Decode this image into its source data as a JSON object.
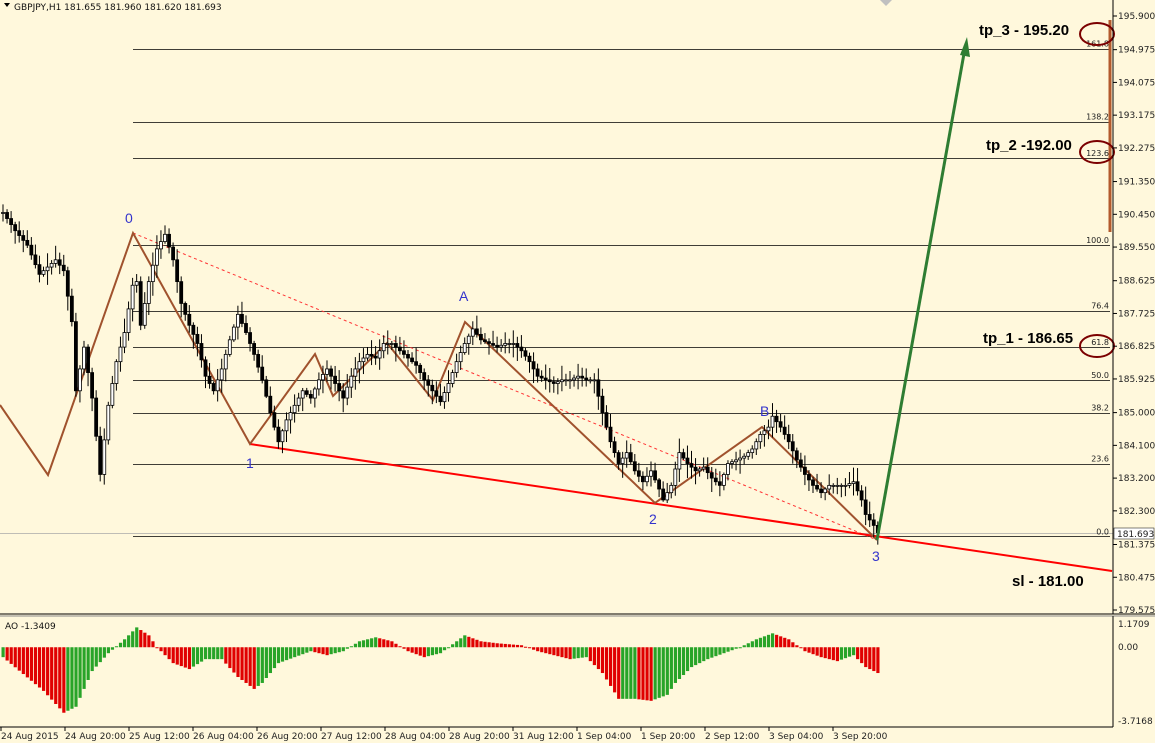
{
  "header": {
    "title": "GBPJPY,H1  181.655 181.960 181.620 181.693",
    "ao_title": "AO -1.3409"
  },
  "chart_data": [
    {
      "type": "candlestick",
      "symbol": "GBPJPY",
      "timeframe": "H1",
      "ylim": [
        179.575,
        195.9
      ],
      "y_ticks": [
        "195.900",
        "194.975",
        "194.075",
        "193.175",
        "192.275",
        "191.350",
        "190.450",
        "189.550",
        "188.625",
        "187.725",
        "186.825",
        "185.925",
        "185.000",
        "184.100",
        "183.200",
        "182.300",
        "181.375",
        "180.475",
        "179.575"
      ],
      "x_ticks": [
        "24 Aug 2015",
        "24 Aug 20:00",
        "25 Aug 12:00",
        "26 Aug 04:00",
        "26 Aug 20:00",
        "27 Aug 12:00",
        "28 Aug 04:00",
        "28 Aug 20:00",
        "31 Aug 12:00",
        "1 Sep 04:00",
        "1 Sep 20:00",
        "2 Sep 12:00",
        "3 Sep 04:00",
        "3 Sep 20:00"
      ],
      "current_price": "181.693",
      "price_path": [
        [
          0,
          190.5
        ],
        [
          3,
          190.0
        ],
        [
          6,
          189.6
        ],
        [
          9,
          188.8
        ],
        [
          11,
          189.0
        ],
        [
          13,
          189.2
        ],
        [
          15,
          188.9
        ],
        [
          17,
          187.5
        ],
        [
          18,
          185.6
        ],
        [
          19,
          186.2
        ],
        [
          20,
          186.8
        ],
        [
          22,
          185.4
        ],
        [
          24,
          183.3
        ],
        [
          26,
          185.2
        ],
        [
          28,
          186.4
        ],
        [
          30,
          187.2
        ],
        [
          32,
          188.5
        ],
        [
          33,
          188.6
        ],
        [
          34,
          187.4
        ],
        [
          36,
          188.6
        ],
        [
          38,
          189.5
        ],
        [
          40,
          189.9
        ],
        [
          42,
          189.2
        ],
        [
          44,
          188.0
        ],
        [
          46,
          187.4
        ],
        [
          48,
          186.9
        ],
        [
          50,
          186.0
        ],
        [
          52,
          185.6
        ],
        [
          54,
          186.2
        ],
        [
          56,
          187.0
        ],
        [
          58,
          187.7
        ],
        [
          60,
          187.2
        ],
        [
          62,
          186.6
        ],
        [
          64,
          185.9
        ],
        [
          66,
          185.0
        ],
        [
          68,
          184.2
        ],
        [
          70,
          184.8
        ],
        [
          72,
          185.2
        ],
        [
          74,
          185.6
        ],
        [
          76,
          185.4
        ],
        [
          78,
          185.9
        ],
        [
          80,
          186.2
        ],
        [
          82,
          185.8
        ],
        [
          84,
          185.4
        ],
        [
          86,
          186.0
        ],
        [
          88,
          186.4
        ],
        [
          90,
          186.6
        ],
        [
          92,
          186.5
        ],
        [
          94,
          186.9
        ],
        [
          96,
          186.9
        ],
        [
          98,
          186.7
        ],
        [
          100,
          186.5
        ],
        [
          102,
          186.3
        ],
        [
          104,
          185.9
        ],
        [
          106,
          185.6
        ],
        [
          108,
          185.3
        ],
        [
          110,
          185.8
        ],
        [
          112,
          186.4
        ],
        [
          114,
          186.9
        ],
        [
          116,
          187.3
        ],
        [
          118,
          187.0
        ],
        [
          120,
          186.9
        ],
        [
          122,
          186.8
        ],
        [
          124,
          186.9
        ],
        [
          126,
          186.9
        ],
        [
          128,
          186.7
        ],
        [
          130,
          186.4
        ],
        [
          132,
          186.0
        ],
        [
          134,
          185.9
        ],
        [
          136,
          185.8
        ],
        [
          138,
          185.9
        ],
        [
          140,
          185.9
        ],
        [
          142,
          186.0
        ],
        [
          144,
          185.9
        ],
        [
          146,
          185.9
        ],
        [
          148,
          185.0
        ],
        [
          150,
          184.2
        ],
        [
          152,
          183.6
        ],
        [
          154,
          183.9
        ],
        [
          156,
          183.4
        ],
        [
          158,
          183.1
        ],
        [
          160,
          183.4
        ],
        [
          162,
          182.9
        ],
        [
          163,
          182.6
        ],
        [
          165,
          183.0
        ],
        [
          167,
          183.9
        ],
        [
          169,
          183.6
        ],
        [
          171,
          183.4
        ],
        [
          173,
          183.5
        ],
        [
          175,
          183.2
        ],
        [
          177,
          183.0
        ],
        [
          179,
          183.6
        ],
        [
          181,
          183.7
        ],
        [
          183,
          183.8
        ],
        [
          185,
          184.0
        ],
        [
          187,
          184.4
        ],
        [
          189,
          184.6
        ],
        [
          190,
          184.9
        ],
        [
          192,
          184.6
        ],
        [
          194,
          184.2
        ],
        [
          196,
          183.7
        ],
        [
          198,
          183.3
        ],
        [
          200,
          183.0
        ],
        [
          202,
          182.8
        ],
        [
          204,
          183.0
        ],
        [
          206,
          183.0
        ],
        [
          208,
          183.0
        ],
        [
          210,
          183.1
        ],
        [
          212,
          182.6
        ],
        [
          213,
          182.2
        ],
        [
          215,
          181.9
        ],
        [
          216,
          181.7
        ]
      ],
      "reference_lines": [
        "195.00",
        "193.00",
        "192.00",
        "189.60",
        "187.80",
        "186.80",
        "185.90",
        "185.00",
        "183.60",
        "181.60"
      ]
    },
    {
      "type": "bar",
      "name": "AO",
      "ylim": [
        -3.7168,
        1.1709
      ],
      "y_ticks": [
        "1.1709",
        "0.00",
        "-3.7168"
      ],
      "value_path": [
        [
          0,
          -0.5
        ],
        [
          10,
          -2.2
        ],
        [
          15,
          -3.3
        ],
        [
          18,
          -3.0
        ],
        [
          22,
          -1.2
        ],
        [
          26,
          -0.3
        ],
        [
          30,
          0.4
        ],
        [
          33,
          1.0
        ],
        [
          36,
          0.6
        ],
        [
          38,
          0.0
        ],
        [
          42,
          -0.8
        ],
        [
          46,
          -1.1
        ],
        [
          50,
          -0.6
        ],
        [
          54,
          -0.6
        ],
        [
          58,
          -1.5
        ],
        [
          62,
          -2.1
        ],
        [
          64,
          -1.8
        ],
        [
          68,
          -0.8
        ],
        [
          72,
          -0.5
        ],
        [
          76,
          -0.2
        ],
        [
          80,
          -0.4
        ],
        [
          84,
          -0.2
        ],
        [
          88,
          0.3
        ],
        [
          92,
          0.5
        ],
        [
          96,
          0.3
        ],
        [
          100,
          -0.2
        ],
        [
          104,
          -0.5
        ],
        [
          108,
          -0.3
        ],
        [
          112,
          0.3
        ],
        [
          114,
          0.6
        ],
        [
          118,
          0.3
        ],
        [
          122,
          0.2
        ],
        [
          128,
          0.1
        ],
        [
          132,
          -0.2
        ],
        [
          136,
          -0.4
        ],
        [
          140,
          -0.6
        ],
        [
          144,
          -0.5
        ],
        [
          148,
          -1.3
        ],
        [
          152,
          -2.6
        ],
        [
          156,
          -2.6
        ],
        [
          160,
          -2.7
        ],
        [
          164,
          -2.4
        ],
        [
          166,
          -1.8
        ],
        [
          170,
          -1.0
        ],
        [
          174,
          -0.6
        ],
        [
          178,
          -0.3
        ],
        [
          182,
          0.0
        ],
        [
          186,
          0.4
        ],
        [
          190,
          0.7
        ],
        [
          194,
          0.4
        ],
        [
          198,
          -0.2
        ],
        [
          202,
          -0.5
        ],
        [
          206,
          -0.7
        ],
        [
          210,
          -0.4
        ],
        [
          213,
          -1.0
        ],
        [
          216,
          -1.3
        ]
      ]
    }
  ],
  "annotations": {
    "fib_levels": [
      "161.8",
      "138.2",
      "123.6",
      "100.0",
      "76.4",
      "61.8",
      "50.0",
      "38.2",
      "23.6",
      "0.0"
    ],
    "targets": [
      "tp_3 - 195.20",
      "tp_2 -192.00",
      "tp_1 - 186.65",
      "sl - 181.00"
    ],
    "waves": [
      "0",
      "1",
      "A",
      "2",
      "B",
      "3"
    ]
  },
  "colors": {
    "background": "#FFF8DC",
    "candle_body": "#000000",
    "wave_line": "#A0522D",
    "trend_line": "#FF0000",
    "target_arrow": "#2E7D32",
    "ao_up": "#28A428",
    "ao_down": "#E00000",
    "wave_label": "#3333CC",
    "ellipse": "#7B0000"
  }
}
